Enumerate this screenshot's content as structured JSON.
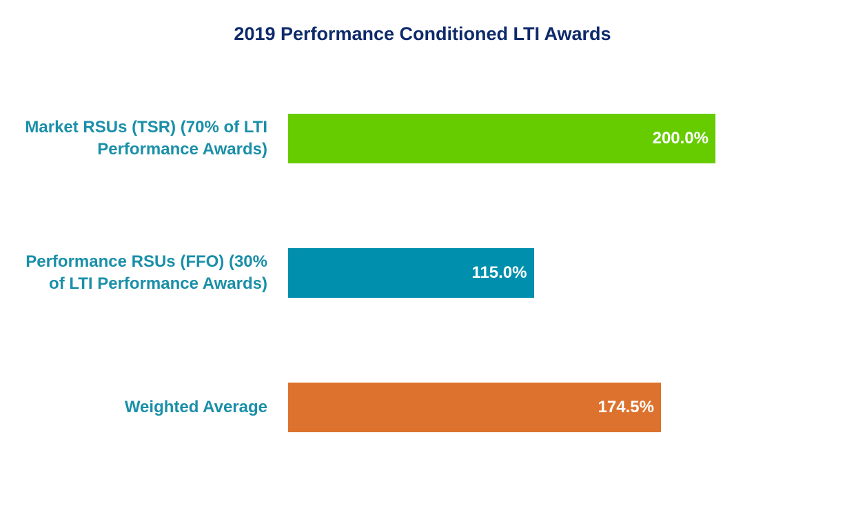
{
  "chart_data": {
    "type": "bar",
    "orientation": "horizontal",
    "title": "2019 Performance Conditioned LTI Awards",
    "categories": [
      "Market RSUs (TSR) (70% of LTI Performance Awards)",
      "Performance RSUs (FFO) (30% of LTI Performance Awards)",
      "Weighted Average"
    ],
    "values": [
      200,
      115,
      174.5
    ],
    "value_labels": [
      "200.0%",
      "115.0%",
      "174.5%"
    ],
    "colors": [
      "#66cc00",
      "#008fad",
      "#dd722e"
    ]
  }
}
